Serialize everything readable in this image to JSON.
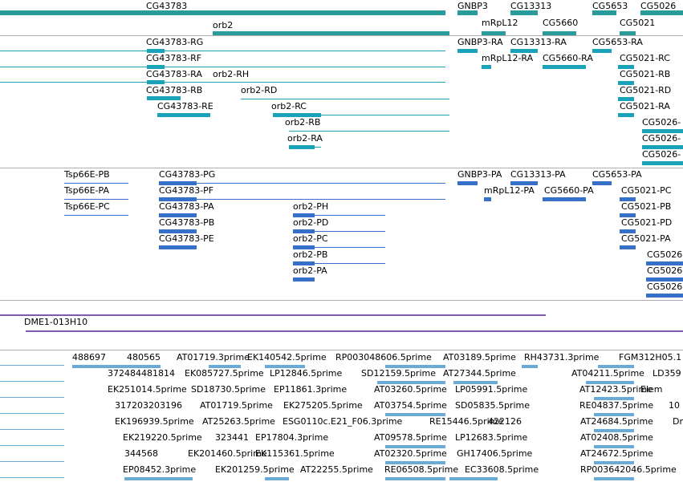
{
  "colors": {
    "genes": "#2a9a9a",
    "transcripts": "#1aa3b8",
    "proteins": "#3670c9",
    "clone": "#7a5bb0",
    "ests": "#6aaad6",
    "separator": "#b0b0b0"
  },
  "tracks": {
    "genes": {
      "items": [
        "CG43783",
        "orb2",
        "GNBP3",
        "CG13313",
        "mRpL12",
        "CG5660",
        "CG5653",
        "CG5026",
        "CG5021"
      ]
    },
    "transcripts": {
      "items": [
        "CG43783-RG",
        "CG43783-RF",
        "CG43783-RA",
        "orb2-RH",
        "CG43783-RB",
        "orb2-RD",
        "CG43783-RE",
        "orb2-RC",
        "orb2-RB",
        "orb2-RA",
        "GNBP3-RA",
        "CG13313-RA",
        "CG5653-RA",
        "mRpL12-RA",
        "CG5660-RA",
        "CG5021-RC",
        "CG5021-RB",
        "CG5021-RD",
        "CG5021-RA",
        "CG5026-",
        "CG5026-",
        "CG5026-"
      ]
    },
    "proteins": {
      "items": [
        "Tsp66E-PB",
        "Tsp66E-PA",
        "Tsp66E-PC",
        "CG43783-PG",
        "CG43783-PF",
        "CG43783-PA",
        "CG43783-PB",
        "CG43783-PE",
        "orb2-PH",
        "orb2-PD",
        "orb2-PC",
        "orb2-PB",
        "orb2-PA",
        "GNBP3-PA",
        "CG13313-PA",
        "CG5653-PA",
        "mRpL12-PA",
        "CG5660-PA",
        "CG5021-PC",
        "CG5021-PB",
        "CG5021-PD",
        "CG5021-PA",
        "CG5026",
        "CG5026",
        "CG5026"
      ]
    },
    "clones": {
      "items": [
        "DME1-013H10"
      ]
    },
    "ests": {
      "items": [
        "488697",
        "480565",
        "AT01719.3prime",
        "EK140542.5prime",
        "RP003048606.5prime",
        "AT03189.5prime",
        "RH43731.3prime",
        "FGM312H05.1",
        "372484481814",
        "EK085727.5prime",
        "LP12846.5prime",
        "SD12159.5prime",
        "AT27344.5prime",
        "AT04211.5prime",
        "LD359",
        "EK251014.5prime",
        "SD18730.5prime",
        "EP11861.3prime",
        "AT03260.5prime",
        "LP05991.5prime",
        "AT12423.5prime",
        "Elem",
        "317203203196",
        "AT01719.5prime",
        "EK275205.5prime",
        "AT03754.5prime",
        "SD05835.5prime",
        "RE04837.5prime",
        "10",
        "EK196939.5prime",
        "AT25263.5prime",
        "ESG0110c.E21_F06.3prime",
        "RE15446.5prime",
        "422126",
        "AT24684.5prime",
        "Dr",
        "EK219220.5prime",
        "323441",
        "EP17804.3prime",
        "AT09578.5prime",
        "LP12683.5prime",
        "AT02408.5prime",
        "344568",
        "EK201460.5prime",
        "EK115361.5prime",
        "AT02320.5prime",
        "GH17406.5prime",
        "AT24672.5prime",
        "EP08452.3prime",
        "EK201259.5prime",
        "AT22255.5prime",
        "RE06508.5prime",
        "EC33608.5prime",
        "RP003642046.5prime"
      ]
    }
  }
}
